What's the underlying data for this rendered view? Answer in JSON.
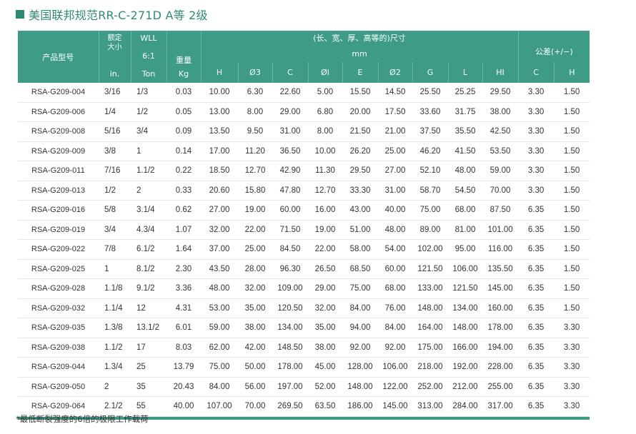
{
  "title": "美国联邦规范RR-C-271D A等 2级",
  "header": {
    "model": "产品型号",
    "rated_size_line1": "额定",
    "rated_size_line2": "大小",
    "rated_size_unit": "in.",
    "wll_line1": "WLL",
    "wll_line2": "6:1",
    "wll_unit": "Ton",
    "weight": "重量",
    "weight_unit": "Kg",
    "dims_line1": "(长、宽、厚、高等的)尺寸",
    "dims_line2": "mm",
    "tolerance": "公差(+/−)",
    "cols": [
      "H",
      "Ø3",
      "C",
      "Øl",
      "E",
      "Ø2",
      "G",
      "L",
      "HI"
    ],
    "tol_cols": [
      "C",
      "H"
    ]
  },
  "rows": [
    [
      "RSA-G209-004",
      "3/16",
      "1/3",
      "0.03",
      "10.00",
      "6.30",
      "22.60",
      "5.00",
      "15.50",
      "14.50",
      "25.50",
      "25.25",
      "29.50",
      "3.30",
      "1.50"
    ],
    [
      "RSA-G209-006",
      "1/4",
      "1/2",
      "0.05",
      "13.00",
      "8.00",
      "29.00",
      "6.80",
      "20.00",
      "17.50",
      "33.60",
      "31.75",
      "38.00",
      "3.30",
      "1.50"
    ],
    [
      "RSA-G209-008",
      "5/16",
      "3/4",
      "0.09",
      "13.50",
      "9.50",
      "31.00",
      "8.00",
      "21.50",
      "21.00",
      "37.50",
      "35.50",
      "42.50",
      "3.30",
      "1.50"
    ],
    [
      "RSA-G209-009",
      "3/8",
      "1",
      "0.14",
      "17.00",
      "11.20",
      "36.50",
      "10.00",
      "26.20",
      "25.00",
      "46.20",
      "41.50",
      "53.50",
      "3.30",
      "1.50"
    ],
    [
      "RSA-G209-011",
      "7/16",
      "1.1/2",
      "0.22",
      "18.50",
      "12.70",
      "42.90",
      "11.30",
      "29.50",
      "27.00",
      "52.10",
      "48.00",
      "59.00",
      "3.30",
      "1.50"
    ],
    [
      "RSA-G209-013",
      "1/2",
      "2",
      "0.33",
      "20.60",
      "15.80",
      "47.80",
      "12.70",
      "33.30",
      "31.00",
      "58.70",
      "54.50",
      "70.00",
      "3.30",
      "1.50"
    ],
    [
      "RSA-G209-016",
      "5/8",
      "3.1/4",
      "0.62",
      "27.00",
      "19.00",
      "60.00",
      "16.00",
      "43.00",
      "40.00",
      "75.00",
      "68.00",
      "87.50",
      "6.35",
      "1.50"
    ],
    [
      "RSA-G209-019",
      "3/4",
      "4.3/4",
      "1.07",
      "32.00",
      "22.00",
      "71.50",
      "19.00",
      "51.00",
      "48.00",
      "89.00",
      "81.00",
      "101.00",
      "6.35",
      "1.50"
    ],
    [
      "RSA-G209-022",
      "7/8",
      "6.1/2",
      "1.64",
      "37.00",
      "25.00",
      "84.50",
      "22.00",
      "58.00",
      "54.00",
      "102.00",
      "95.00",
      "116.00",
      "6.35",
      "1.50"
    ],
    [
      "RSA-G209-025",
      "1",
      "8.1/2",
      "2.30",
      "43.50",
      "28.00",
      "96.30",
      "26.50",
      "68.50",
      "60.00",
      "121.50",
      "106.00",
      "135.50",
      "6.35",
      "1.50"
    ],
    [
      "RSA-G209-028",
      "1.1/8",
      "9.1/2",
      "3.36",
      "48.00",
      "32.00",
      "109.00",
      "29.00",
      "75.00",
      "68.00",
      "133.00",
      "121.50",
      "145.00",
      "6.35",
      "1.50"
    ],
    [
      "RSA-G209-032",
      "1.1/4",
      "12",
      "4.31",
      "53.00",
      "35.00",
      "120.50",
      "32.00",
      "84.00",
      "76.00",
      "148.00",
      "134.00",
      "160.00",
      "6.35",
      "1.50"
    ],
    [
      "RSA-G209-035",
      "1.3/8",
      "13.1/2",
      "6.01",
      "59.00",
      "38.00",
      "134.00",
      "35.00",
      "94.00",
      "84.00",
      "164.00",
      "148.00",
      "178.00",
      "6.35",
      "3.30"
    ],
    [
      "RSA-G209-038",
      "1.1/2",
      "17",
      "8.03",
      "62.00",
      "42.00",
      "148.50",
      "38.00",
      "92.00",
      "92.00",
      "175.00",
      "166.00",
      "194.00",
      "6.35",
      "3.30"
    ],
    [
      "RSA-G209-044",
      "1.3/4",
      "25",
      "13.79",
      "75.00",
      "50.00",
      "178.00",
      "45.00",
      "128.00",
      "106.00",
      "218.00",
      "192.00",
      "228.00",
      "6.35",
      "3.30"
    ],
    [
      "RSA-G209-050",
      "2",
      "35",
      "20.43",
      "84.00",
      "56.00",
      "197.00",
      "52.00",
      "148.00",
      "122.00",
      "252.00",
      "212.00",
      "255.00",
      "6.35",
      "3.30"
    ],
    [
      "RSA-G209-064",
      "2.1/2",
      "55",
      "40.00",
      "107.00",
      "70.00",
      "269.50",
      "63.50",
      "186.00",
      "145.00",
      "313.00",
      "284.00",
      "317.00",
      "6.35",
      "3.30"
    ]
  ],
  "footnote": "*最低断裂强度的6倍的极限工作载荷"
}
